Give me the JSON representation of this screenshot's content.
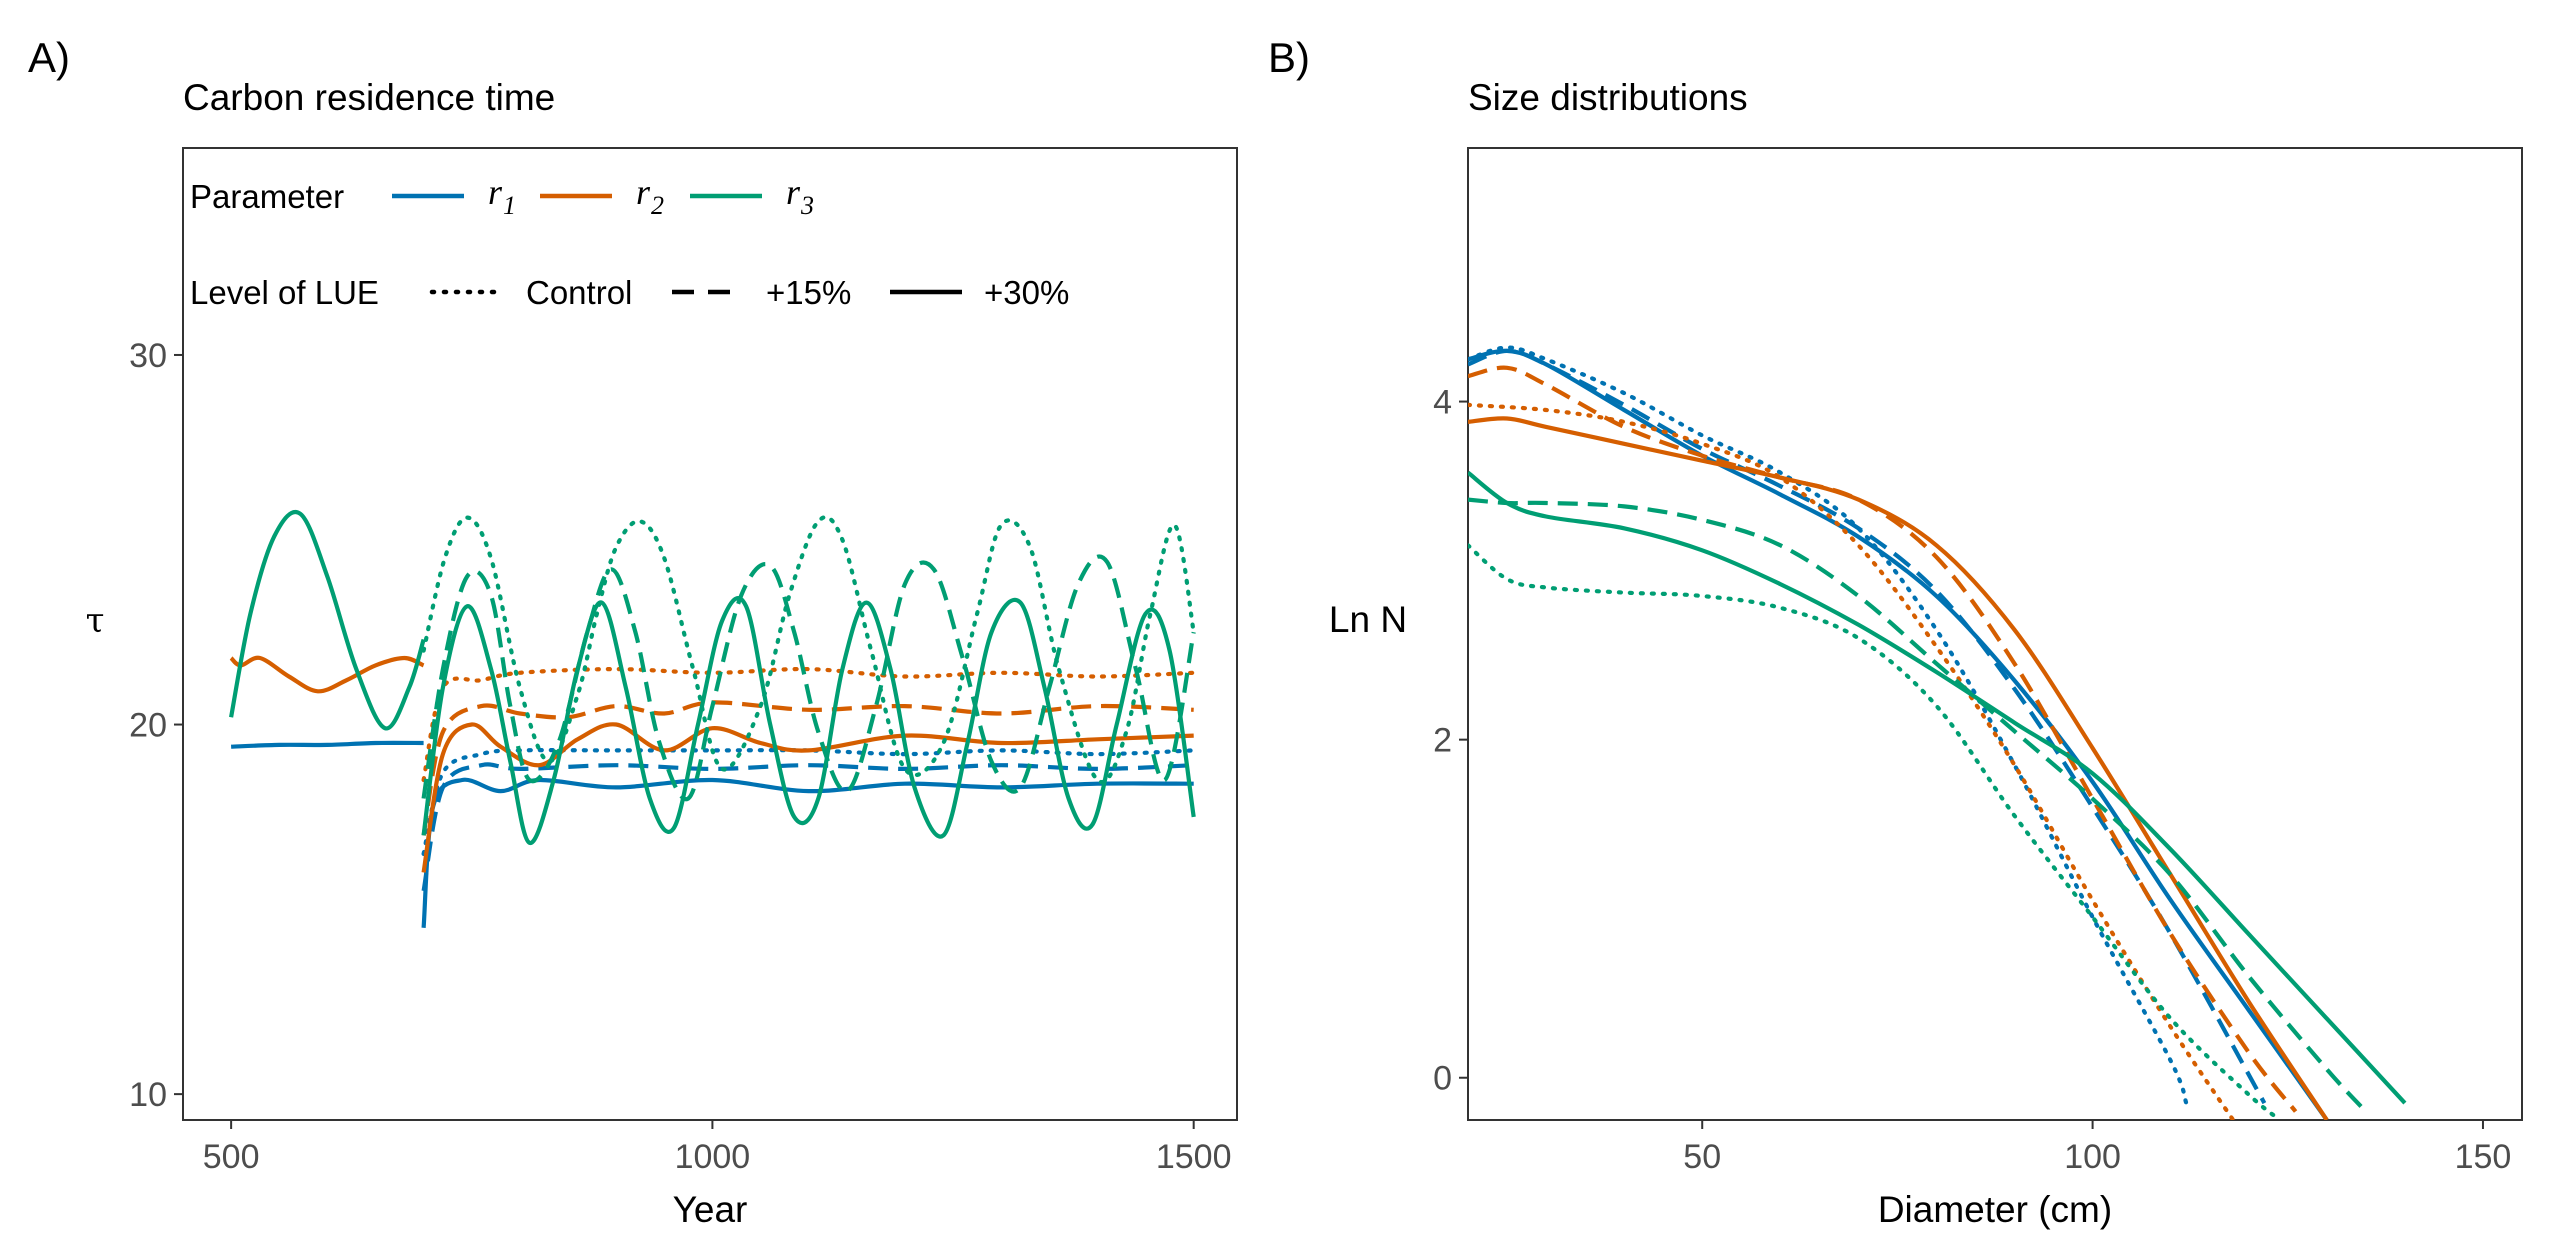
{
  "colors": {
    "r1": "#0072B2",
    "r2": "#D55E00",
    "r3": "#009E73"
  },
  "panel_a": {
    "letter": "A)",
    "title": "Carbon residence time",
    "legend": {
      "parameter_title": "Parameter",
      "parameter_keys": [
        {
          "base": "r",
          "sub": "1",
          "color": "#0072B2"
        },
        {
          "base": "r",
          "sub": "2",
          "color": "#D55E00"
        },
        {
          "base": "r",
          "sub": "3",
          "color": "#009E73"
        }
      ],
      "lue_title": "Level of LUE",
      "lue_keys": [
        {
          "label": "Control",
          "linetype": "dotted"
        },
        {
          "label": "+15%",
          "linetype": "dashed"
        },
        {
          "label": "+30%",
          "linetype": "solid"
        }
      ]
    }
  },
  "panel_b": {
    "letter": "B)",
    "title": "Size distributions"
  },
  "chart_data": [
    {
      "type": "line",
      "title": "Carbon residence time",
      "xlabel": "Year",
      "ylabel": "τ",
      "xlim": [
        450,
        1545
      ],
      "ylim": [
        9.3,
        35.6
      ],
      "xticks": [
        500,
        1000,
        1500
      ],
      "yticks": [
        10,
        20,
        30
      ],
      "grid": false,
      "legend_position": "top-left inside",
      "spinup": [
        {
          "parameter": "r1",
          "x": [
            500,
            550,
            600,
            650,
            700
          ],
          "y": [
            19.4,
            19.45,
            19.45,
            19.5,
            19.5
          ]
        },
        {
          "parameter": "r2",
          "x": [
            500,
            510,
            530,
            560,
            590,
            620,
            650,
            680,
            700
          ],
          "y": [
            21.8,
            21.6,
            21.8,
            21.3,
            20.9,
            21.2,
            21.6,
            21.8,
            21.6
          ]
        },
        {
          "parameter": "r3",
          "x": [
            500,
            520,
            545,
            572,
            600,
            630,
            660,
            685,
            700
          ],
          "y": [
            20.2,
            23.0,
            25.1,
            25.7,
            24.0,
            21.5,
            19.9,
            21.0,
            22.3
          ]
        }
      ],
      "series": [
        {
          "parameter": "r1",
          "lue": "Control",
          "x": [
            700,
            720,
            760,
            800,
            900,
            1000,
            1100,
            1200,
            1300,
            1400,
            1500
          ],
          "y": [
            16.5,
            18.7,
            19.2,
            19.3,
            19.3,
            19.3,
            19.3,
            19.2,
            19.3,
            19.2,
            19.3
          ]
        },
        {
          "parameter": "r1",
          "lue": "+15%",
          "x": [
            700,
            720,
            760,
            800,
            900,
            1000,
            1100,
            1200,
            1300,
            1400,
            1500
          ],
          "y": [
            15.5,
            18.3,
            18.9,
            18.8,
            18.9,
            18.8,
            18.9,
            18.8,
            18.9,
            18.8,
            18.9
          ]
        },
        {
          "parameter": "r1",
          "lue": "+30%",
          "x": [
            700,
            710,
            740,
            780,
            820,
            900,
            1000,
            1100,
            1200,
            1300,
            1400,
            1500
          ],
          "y": [
            14.5,
            17.8,
            18.5,
            18.2,
            18.5,
            18.3,
            18.5,
            18.2,
            18.4,
            18.3,
            18.4,
            18.4
          ]
        },
        {
          "parameter": "r2",
          "lue": "Control",
          "x": [
            700,
            720,
            760,
            800,
            900,
            1000,
            1100,
            1200,
            1300,
            1400,
            1500
          ],
          "y": [
            18.5,
            21.0,
            21.2,
            21.4,
            21.5,
            21.4,
            21.5,
            21.3,
            21.4,
            21.3,
            21.4
          ]
        },
        {
          "parameter": "r2",
          "lue": "+15%",
          "x": [
            700,
            720,
            760,
            800,
            850,
            900,
            950,
            1000,
            1100,
            1200,
            1300,
            1400,
            1500
          ],
          "y": [
            17.0,
            19.8,
            20.5,
            20.3,
            20.2,
            20.5,
            20.3,
            20.6,
            20.4,
            20.5,
            20.3,
            20.5,
            20.4
          ]
        },
        {
          "parameter": "r2",
          "lue": "+30%",
          "x": [
            700,
            720,
            750,
            780,
            820,
            860,
            900,
            950,
            1000,
            1050,
            1100,
            1200,
            1300,
            1400,
            1500
          ],
          "y": [
            16.0,
            19.2,
            20.0,
            19.4,
            18.9,
            19.6,
            20.0,
            19.3,
            19.9,
            19.5,
            19.3,
            19.7,
            19.5,
            19.6,
            19.7
          ]
        },
        {
          "parameter": "r3",
          "lue": "Control",
          "x": [
            700,
            722,
            745,
            770,
            800,
            830,
            860,
            880,
            900,
            925,
            950,
            980,
            1010,
            1050,
            1080,
            1110,
            1135,
            1165,
            1200,
            1240,
            1275,
            1300,
            1330,
            1360,
            1400,
            1430,
            1455,
            1480,
            1500
          ],
          "y": [
            22.0,
            24.5,
            25.6,
            24.5,
            21.0,
            19.0,
            20.8,
            23.0,
            24.8,
            25.5,
            24.5,
            21.5,
            18.8,
            20.5,
            23.5,
            25.5,
            25.0,
            22.0,
            18.8,
            19.5,
            23.0,
            25.4,
            24.8,
            21.5,
            18.5,
            19.8,
            23.0,
            25.4,
            22.5
          ]
        },
        {
          "parameter": "r3",
          "lue": "+15%",
          "x": [
            700,
            720,
            745,
            770,
            790,
            810,
            840,
            870,
            895,
            920,
            945,
            975,
            1000,
            1030,
            1060,
            1085,
            1110,
            1140,
            1170,
            1200,
            1230,
            1260,
            1290,
            1320,
            1350,
            1380,
            1410,
            1440,
            1470,
            1500
          ],
          "y": [
            18.0,
            21.5,
            24.0,
            23.5,
            20.5,
            18.5,
            19.5,
            22.5,
            24.2,
            22.5,
            19.5,
            18.0,
            20.5,
            23.5,
            24.3,
            22.5,
            19.8,
            18.2,
            20.5,
            23.8,
            24.2,
            21.8,
            19.0,
            18.3,
            21.0,
            23.8,
            24.4,
            21.5,
            18.5,
            22.5
          ]
        },
        {
          "parameter": "r3",
          "lue": "+30%",
          "x": [
            700,
            720,
            745,
            770,
            790,
            810,
            835,
            860,
            885,
            910,
            935,
            960,
            985,
            1010,
            1035,
            1060,
            1085,
            1110,
            1135,
            1160,
            1185,
            1210,
            1240,
            1265,
            1290,
            1320,
            1345,
            1370,
            1395,
            1420,
            1450,
            1475,
            1500
          ],
          "y": [
            17.0,
            21.0,
            23.2,
            21.5,
            19.0,
            16.8,
            18.5,
            21.5,
            23.3,
            21.0,
            18.0,
            17.2,
            20.0,
            22.8,
            23.2,
            20.0,
            17.5,
            18.0,
            21.5,
            23.3,
            21.5,
            18.3,
            17.0,
            19.5,
            22.5,
            23.3,
            21.0,
            18.0,
            17.3,
            20.0,
            23.0,
            22.0,
            17.5
          ]
        }
      ]
    },
    {
      "type": "line",
      "title": "Size distributions",
      "xlabel": "Diameter (cm)",
      "ylabel": "Ln N",
      "xlim": [
        20,
        155
      ],
      "ylim": [
        -0.25,
        5.5
      ],
      "xticks": [
        50,
        100,
        150
      ],
      "yticks": [
        0,
        2,
        4
      ],
      "grid": false,
      "series": [
        {
          "parameter": "r1",
          "lue": "Control",
          "x": [
            20,
            25,
            30,
            40,
            50,
            60,
            70,
            80,
            90,
            100,
            110,
            112
          ],
          "y": [
            4.25,
            4.32,
            4.25,
            4.05,
            3.8,
            3.58,
            3.25,
            2.65,
            1.85,
            0.95,
            0.1,
            -0.15
          ]
        },
        {
          "parameter": "r1",
          "lue": "+15%",
          "x": [
            20,
            25,
            30,
            40,
            50,
            60,
            70,
            80,
            90,
            100,
            110,
            122
          ],
          "y": [
            4.22,
            4.3,
            4.22,
            3.98,
            3.72,
            3.5,
            3.25,
            2.88,
            2.3,
            1.6,
            0.85,
            -0.15
          ]
        },
        {
          "parameter": "r1",
          "lue": "+30%",
          "x": [
            20,
            25,
            30,
            40,
            50,
            60,
            70,
            80,
            90,
            100,
            110,
            120,
            130
          ],
          "y": [
            4.25,
            4.3,
            4.22,
            3.95,
            3.68,
            3.45,
            3.2,
            2.85,
            2.35,
            1.75,
            1.05,
            0.4,
            -0.25
          ]
        },
        {
          "parameter": "r2",
          "lue": "Control",
          "x": [
            20,
            30,
            40,
            50,
            60,
            70,
            80,
            90,
            100,
            110,
            118
          ],
          "y": [
            3.98,
            3.95,
            3.88,
            3.75,
            3.55,
            3.15,
            2.55,
            1.85,
            1.05,
            0.3,
            -0.25
          ]
        },
        {
          "parameter": "r2",
          "lue": "+15%",
          "x": [
            20,
            25,
            30,
            40,
            50,
            60,
            70,
            80,
            90,
            100,
            110,
            120,
            126
          ],
          "y": [
            4.15,
            4.2,
            4.1,
            3.85,
            3.68,
            3.55,
            3.42,
            3.08,
            2.45,
            1.65,
            0.85,
            0.15,
            -0.2
          ]
        },
        {
          "parameter": "r2",
          "lue": "+30%",
          "x": [
            20,
            25,
            30,
            40,
            50,
            60,
            70,
            80,
            90,
            100,
            110,
            120,
            130
          ],
          "y": [
            3.88,
            3.9,
            3.85,
            3.75,
            3.65,
            3.55,
            3.42,
            3.15,
            2.65,
            1.95,
            1.2,
            0.45,
            -0.25
          ]
        },
        {
          "parameter": "r3",
          "lue": "Control",
          "x": [
            20,
            25,
            30,
            40,
            50,
            60,
            70,
            80,
            90,
            100,
            110,
            120,
            124
          ],
          "y": [
            3.15,
            2.95,
            2.9,
            2.87,
            2.85,
            2.78,
            2.6,
            2.2,
            1.55,
            0.95,
            0.35,
            -0.1,
            -0.25
          ]
        },
        {
          "parameter": "r3",
          "lue": "+15%",
          "x": [
            20,
            25,
            30,
            40,
            50,
            60,
            70,
            80,
            90,
            100,
            110,
            120,
            130,
            135
          ],
          "y": [
            3.42,
            3.4,
            3.4,
            3.38,
            3.3,
            3.15,
            2.85,
            2.45,
            2.05,
            1.65,
            1.2,
            0.6,
            0.05,
            -0.2
          ]
        },
        {
          "parameter": "r3",
          "lue": "+30%",
          "x": [
            20,
            25,
            30,
            40,
            50,
            60,
            70,
            80,
            90,
            100,
            110,
            120,
            130,
            140
          ],
          "y": [
            3.58,
            3.4,
            3.32,
            3.25,
            3.12,
            2.92,
            2.68,
            2.4,
            2.1,
            1.8,
            1.35,
            0.85,
            0.35,
            -0.15
          ]
        }
      ]
    }
  ]
}
